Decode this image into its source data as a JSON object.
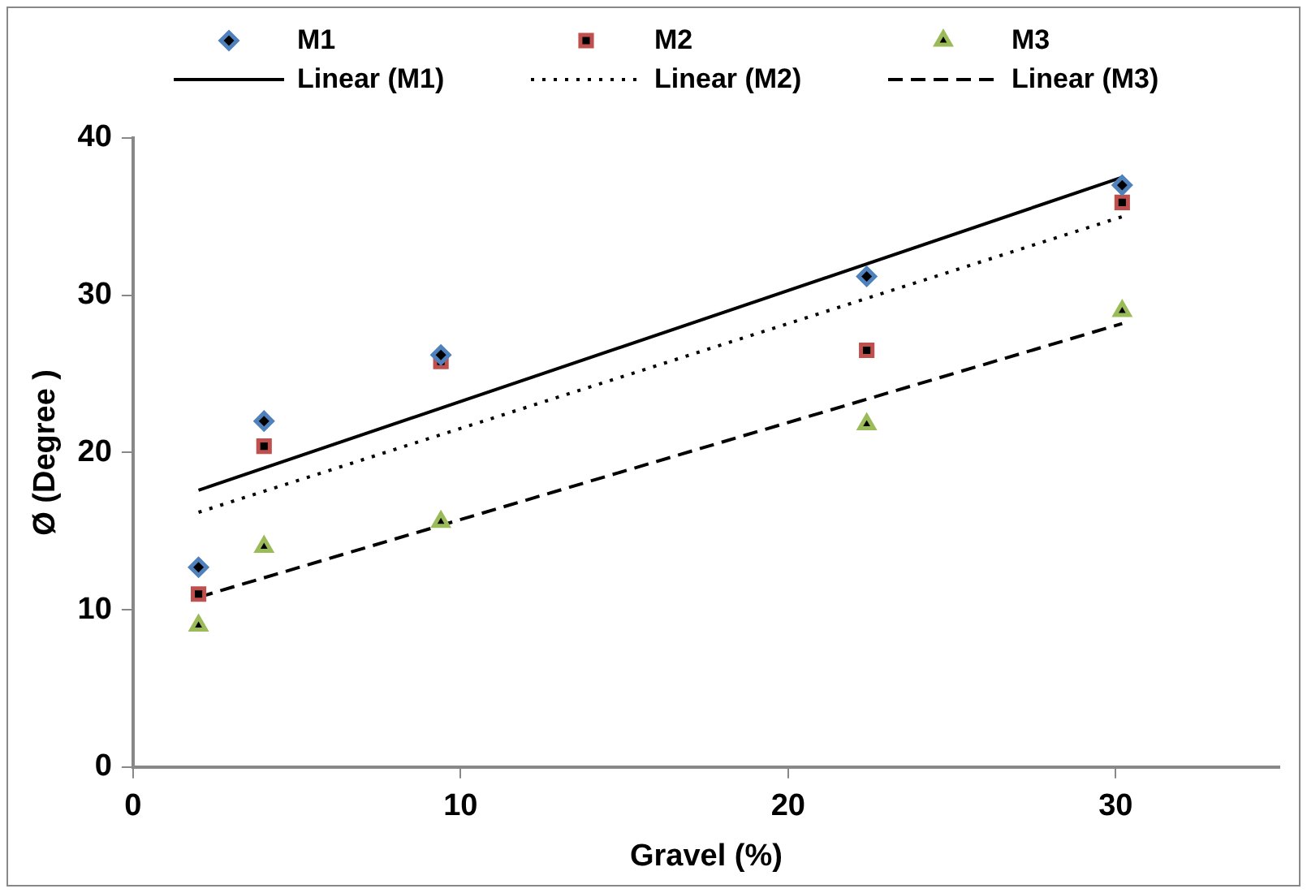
{
  "chart_data": {
    "type": "scatter",
    "xlabel": "Gravel (%)",
    "ylabel": "Ø (Degree )",
    "xlim": [
      0,
      35
    ],
    "xticks": [
      0,
      10,
      20,
      30
    ],
    "ylim": [
      0,
      40
    ],
    "yticks": [
      0,
      10,
      20,
      30,
      40
    ],
    "grid": false,
    "legend": "top",
    "series": [
      {
        "name": "M1",
        "type": "scatter",
        "marker": "diamond",
        "color": "#4f81bd",
        "x": [
          2,
          4,
          9.4,
          22.4,
          30.2
        ],
        "values": [
          12.7,
          22,
          26.2,
          31.2,
          37
        ]
      },
      {
        "name": "M2",
        "type": "scatter",
        "marker": "square",
        "color": "#c0504d",
        "x": [
          2,
          4,
          9.4,
          22.4,
          30.2
        ],
        "values": [
          11,
          20.4,
          25.8,
          26.5,
          35.9
        ]
      },
      {
        "name": "M3",
        "type": "scatter",
        "marker": "triangle",
        "color": "#9bbb59",
        "x": [
          2,
          4,
          9.4,
          22.4,
          30.2
        ],
        "values": [
          9,
          14,
          15.6,
          21.8,
          29
        ]
      },
      {
        "name": "Linear (M1)",
        "type": "line",
        "line_style": "solid",
        "marker": "none",
        "color": "#000000",
        "x": [
          2,
          30.2
        ],
        "values": [
          17.6,
          37.5
        ]
      },
      {
        "name": "Linear (M2)",
        "type": "line",
        "line_style": "dotted",
        "marker": "none",
        "color": "#000000",
        "x": [
          2,
          30.2
        ],
        "values": [
          16.2,
          35
        ]
      },
      {
        "name": "Linear (M3)",
        "type": "line",
        "line_style": "dashed",
        "marker": "none",
        "color": "#000000",
        "x": [
          2,
          30.2
        ],
        "values": [
          10.8,
          28.2
        ]
      }
    ]
  }
}
